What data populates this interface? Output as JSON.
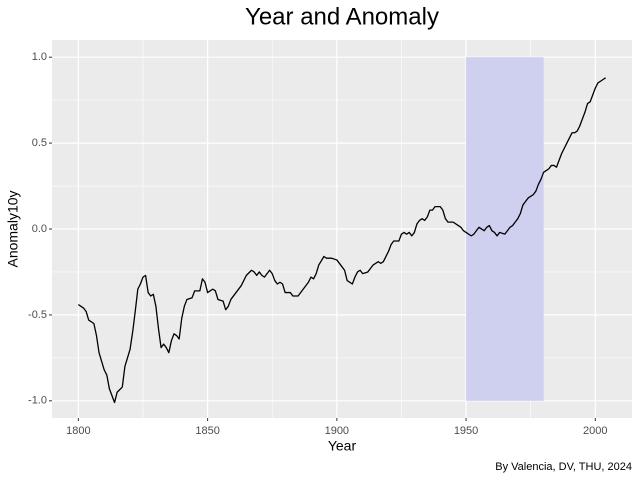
{
  "chart_data": {
    "type": "line",
    "title": "Year and Anomaly",
    "x_label": "Year",
    "y_label": "Anomaly10y",
    "caption": "By Valencia, DV, THU, 2024",
    "color": "#000000",
    "grid": true,
    "xlim": [
      1789.8,
      2014.2
    ],
    "ylim": [
      -1.1,
      1.1
    ],
    "xticks": [
      1800,
      1850,
      1900,
      1950,
      2000
    ],
    "yticks": [
      {
        "value": -1,
        "label": "-1.0"
      },
      {
        "value": -0.5,
        "label": "-0.5"
      },
      {
        "value": 0,
        "label": "0.0"
      },
      {
        "value": 0.5,
        "label": "0.5"
      },
      {
        "value": 1,
        "label": "1.0"
      }
    ],
    "highlight": {
      "xmin": 1950,
      "xmax": 1980,
      "ymin": -1,
      "ymax": 1,
      "color": "#cfcfef"
    },
    "x": [
      1800,
      1802,
      1803,
      1804,
      1806,
      1807,
      1808,
      1810,
      1811,
      1812,
      1813,
      1814,
      1815,
      1817,
      1818,
      1820,
      1821,
      1822,
      1823,
      1824,
      1825,
      1826,
      1827,
      1828,
      1829,
      1830,
      1831,
      1832,
      1833,
      1834,
      1835,
      1836,
      1837,
      1838,
      1839,
      1840,
      1841,
      1842,
      1844,
      1845,
      1847,
      1848,
      1849,
      1850,
      1852,
      1853,
      1854,
      1856,
      1857,
      1858,
      1859,
      1861,
      1863,
      1865,
      1867,
      1868,
      1869,
      1870,
      1871,
      1872,
      1873,
      1874,
      1875,
      1876,
      1877,
      1878,
      1879,
      1880,
      1882,
      1883,
      1885,
      1887,
      1889,
      1890,
      1891,
      1892,
      1893,
      1895,
      1896,
      1898,
      1900,
      1902,
      1903,
      1904,
      1906,
      1907,
      1908,
      1909,
      1910,
      1912,
      1913,
      1914,
      1916,
      1917,
      1918,
      1920,
      1921,
      1922,
      1924,
      1925,
      1926,
      1927,
      1928,
      1929,
      1930,
      1931,
      1932,
      1933,
      1934,
      1935,
      1936,
      1937,
      1938,
      1940,
      1941,
      1942,
      1943,
      1945,
      1947,
      1948,
      1949,
      1950,
      1952,
      1953,
      1955,
      1957,
      1958,
      1959,
      1960,
      1961,
      1962,
      1963,
      1965,
      1966,
      1967,
      1968,
      1969,
      1970,
      1971,
      1972,
      1973,
      1974,
      1975,
      1976,
      1977,
      1978,
      1979,
      1980,
      1981,
      1982,
      1983,
      1984,
      1985,
      1986,
      1987,
      1988,
      1989,
      1990,
      1991,
      1992,
      1993,
      1994,
      1995,
      1996,
      1997,
      1998,
      1999,
      2000,
      2001,
      2002,
      2003,
      2004
    ],
    "values": [
      -0.44,
      -0.46,
      -0.48,
      -0.53,
      -0.55,
      -0.62,
      -0.72,
      -0.82,
      -0.85,
      -0.93,
      -0.97,
      -1.01,
      -0.95,
      -0.92,
      -0.8,
      -0.7,
      -0.6,
      -0.48,
      -0.35,
      -0.32,
      -0.28,
      -0.27,
      -0.37,
      -0.39,
      -0.38,
      -0.45,
      -0.58,
      -0.69,
      -0.67,
      -0.69,
      -0.72,
      -0.65,
      -0.61,
      -0.62,
      -0.64,
      -0.52,
      -0.45,
      -0.41,
      -0.4,
      -0.36,
      -0.36,
      -0.29,
      -0.31,
      -0.37,
      -0.35,
      -0.36,
      -0.41,
      -0.42,
      -0.47,
      -0.45,
      -0.41,
      -0.37,
      -0.33,
      -0.27,
      -0.24,
      -0.25,
      -0.27,
      -0.25,
      -0.27,
      -0.28,
      -0.26,
      -0.24,
      -0.26,
      -0.3,
      -0.32,
      -0.31,
      -0.32,
      -0.37,
      -0.37,
      -0.39,
      -0.39,
      -0.35,
      -0.31,
      -0.28,
      -0.29,
      -0.26,
      -0.21,
      -0.16,
      -0.17,
      -0.17,
      -0.18,
      -0.22,
      -0.24,
      -0.3,
      -0.32,
      -0.28,
      -0.25,
      -0.24,
      -0.26,
      -0.25,
      -0.23,
      -0.21,
      -0.19,
      -0.2,
      -0.19,
      -0.13,
      -0.09,
      -0.07,
      -0.07,
      -0.03,
      -0.02,
      -0.03,
      -0.02,
      -0.04,
      -0.02,
      0.03,
      0.05,
      0.06,
      0.05,
      0.07,
      0.11,
      0.11,
      0.13,
      0.13,
      0.11,
      0.06,
      0.04,
      0.04,
      0.02,
      0.01,
      -0.01,
      -0.02,
      -0.04,
      -0.03,
      0.01,
      -0.01,
      0.01,
      0.02,
      -0.01,
      -0.02,
      -0.04,
      -0.02,
      -0.03,
      -0.01,
      0.01,
      0.02,
      0.04,
      0.06,
      0.09,
      0.14,
      0.16,
      0.18,
      0.19,
      0.2,
      0.22,
      0.26,
      0.29,
      0.33,
      0.34,
      0.35,
      0.37,
      0.37,
      0.36,
      0.4,
      0.44,
      0.47,
      0.5,
      0.53,
      0.56,
      0.56,
      0.57,
      0.6,
      0.64,
      0.68,
      0.73,
      0.74,
      0.78,
      0.82,
      0.85,
      0.86,
      0.87,
      0.88
    ]
  }
}
